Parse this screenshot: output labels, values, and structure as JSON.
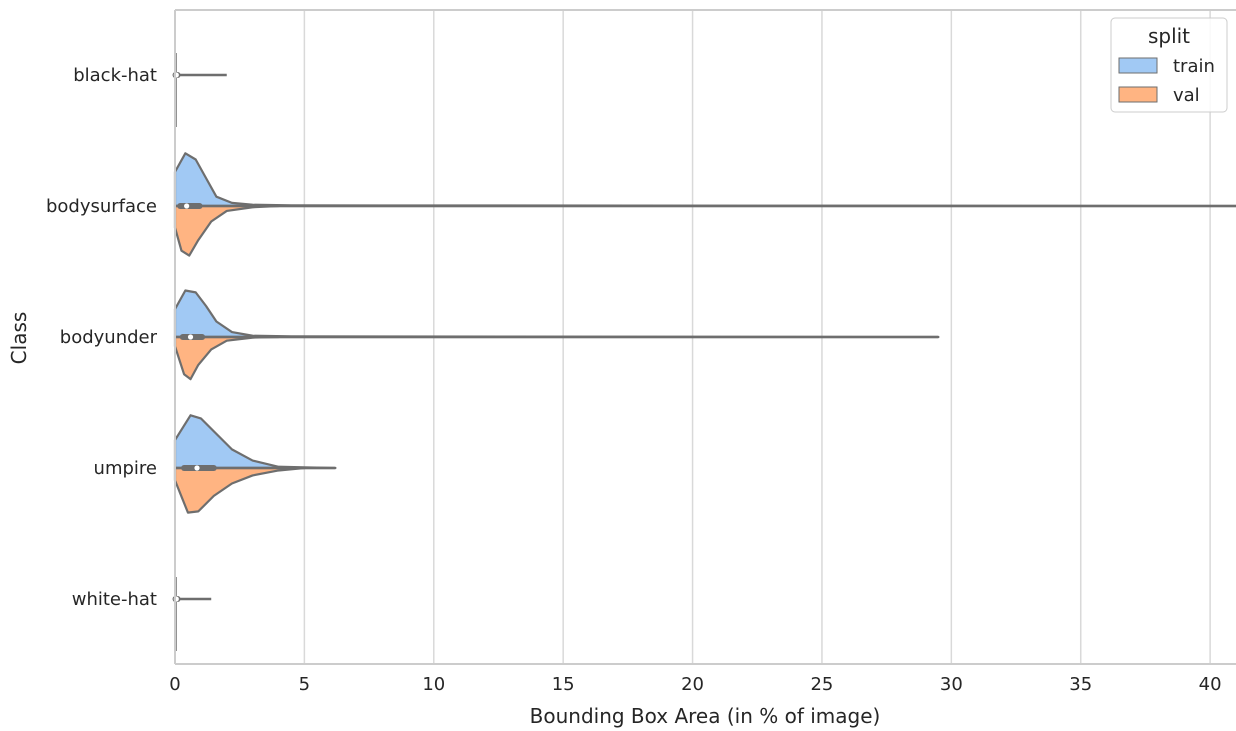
{
  "chart_data": {
    "type": "violin",
    "title": "",
    "xlabel": "Bounding Box Area (in % of image)",
    "ylabel": "Class",
    "xlim": [
      0,
      41
    ],
    "xticks": [
      0,
      5,
      10,
      15,
      20,
      25,
      30,
      35,
      40
    ],
    "grid": "vertical",
    "split": true,
    "categories": [
      "black-hat",
      "bodysurface",
      "bodyunder",
      "umpire",
      "white-hat"
    ],
    "legend": {
      "title": "split",
      "placement": "top-right",
      "entries": [
        {
          "label": "train",
          "color": "#a1c9f4"
        },
        {
          "label": "val",
          "color": "#ffb482"
        }
      ]
    },
    "series": [
      {
        "name": "train",
        "color": "#a1c9f4",
        "distributions": [
          {
            "category": "black-hat",
            "min": 0.0,
            "q1": 0.02,
            "median": 0.05,
            "q3": 0.1,
            "max": 2.0,
            "density": [
              [
                0,
                0.0
              ],
              [
                2.0,
                0.0
              ]
            ]
          },
          {
            "category": "bodysurface",
            "min": 0.0,
            "q1": 0.25,
            "median": 0.45,
            "q3": 0.95,
            "max": 41.0,
            "density": [
              [
                0,
                0.55
              ],
              [
                0.4,
                0.85
              ],
              [
                0.8,
                0.75
              ],
              [
                1.2,
                0.45
              ],
              [
                1.6,
                0.15
              ],
              [
                2.2,
                0.05
              ],
              [
                3.0,
                0.02
              ],
              [
                4.5,
                0.01
              ],
              [
                41.0,
                0.0
              ]
            ]
          },
          {
            "category": "bodyunder",
            "min": 0.0,
            "q1": 0.35,
            "median": 0.6,
            "q3": 1.05,
            "max": 29.5,
            "density": [
              [
                0,
                0.45
              ],
              [
                0.4,
                0.75
              ],
              [
                0.8,
                0.72
              ],
              [
                1.2,
                0.5
              ],
              [
                1.6,
                0.25
              ],
              [
                2.2,
                0.08
              ],
              [
                3.0,
                0.02
              ],
              [
                4.5,
                0.01
              ],
              [
                29.5,
                0.0
              ]
            ]
          },
          {
            "category": "umpire",
            "min": 0.0,
            "q1": 0.35,
            "median": 0.85,
            "q3": 1.45,
            "max": 6.2,
            "density": [
              [
                0,
                0.45
              ],
              [
                0.6,
                0.85
              ],
              [
                1.0,
                0.8
              ],
              [
                1.6,
                0.55
              ],
              [
                2.2,
                0.3
              ],
              [
                3.0,
                0.12
              ],
              [
                4.0,
                0.02
              ],
              [
                5.0,
                0.01
              ],
              [
                6.2,
                0.0
              ]
            ]
          },
          {
            "category": "white-hat",
            "min": 0.0,
            "q1": 0.02,
            "median": 0.05,
            "q3": 0.1,
            "max": 1.4,
            "density": [
              [
                0,
                0.0
              ],
              [
                1.4,
                0.0
              ]
            ]
          }
        ]
      },
      {
        "name": "val",
        "color": "#ffb482",
        "distributions": [
          {
            "category": "black-hat",
            "min": 0.0,
            "q1": 0.02,
            "median": 0.05,
            "q3": 0.1,
            "max": 0.2,
            "density": [
              [
                0,
                0.0
              ]
            ]
          },
          {
            "category": "bodysurface",
            "min": 0.0,
            "q1": 0.2,
            "median": 0.4,
            "q3": 0.8,
            "max": 4.0,
            "density": [
              [
                0,
                0.35
              ],
              [
                0.25,
                0.72
              ],
              [
                0.55,
                0.8
              ],
              [
                0.9,
                0.55
              ],
              [
                1.4,
                0.25
              ],
              [
                2.0,
                0.08
              ],
              [
                3.0,
                0.02
              ],
              [
                4.0,
                0.0
              ]
            ]
          },
          {
            "category": "bodyunder",
            "min": 0.0,
            "q1": 0.3,
            "median": 0.55,
            "q3": 1.0,
            "max": 4.0,
            "density": [
              [
                0,
                0.15
              ],
              [
                0.35,
                0.6
              ],
              [
                0.6,
                0.68
              ],
              [
                0.9,
                0.45
              ],
              [
                1.4,
                0.2
              ],
              [
                2.0,
                0.06
              ],
              [
                3.0,
                0.01
              ],
              [
                4.0,
                0.0
              ]
            ]
          },
          {
            "category": "umpire",
            "min": 0.0,
            "q1": 0.4,
            "median": 0.85,
            "q3": 1.5,
            "max": 5.0,
            "density": [
              [
                0,
                0.2
              ],
              [
                0.5,
                0.72
              ],
              [
                0.9,
                0.7
              ],
              [
                1.5,
                0.45
              ],
              [
                2.2,
                0.25
              ],
              [
                3.0,
                0.12
              ],
              [
                4.0,
                0.04
              ],
              [
                5.0,
                0.0
              ]
            ]
          },
          {
            "category": "white-hat",
            "min": 0.0,
            "q1": 0.02,
            "median": 0.05,
            "q3": 0.1,
            "max": 0.2,
            "density": [
              [
                0,
                0.0
              ]
            ]
          }
        ]
      }
    ]
  }
}
